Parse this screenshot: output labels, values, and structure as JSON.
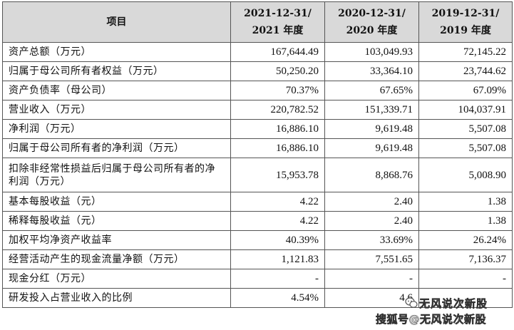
{
  "table": {
    "header": {
      "item": "项目",
      "col1_line1": "2021-12-31/",
      "col1_line2": "2021 年度",
      "col2_line1": "2020-12-31/",
      "col2_line2": "2020 年度",
      "col3_line1": "2019-12-31/",
      "col3_line2": "2019 年度"
    },
    "rows": [
      {
        "label": "资产总额（万元）",
        "v2021": "167,644.49",
        "v2020": "103,049.93",
        "v2019": "72,145.22"
      },
      {
        "label": "归属于母公司所有者权益（万元）",
        "v2021": "50,250.20",
        "v2020": "33,364.10",
        "v2019": "23,744.62"
      },
      {
        "label": "资产负债率（母公司）",
        "v2021": "70.37%",
        "v2020": "67.65%",
        "v2019": "67.09%"
      },
      {
        "label": "营业收入（万元）",
        "v2021": "220,782.52",
        "v2020": "151,339.71",
        "v2019": "104,037.91"
      },
      {
        "label": "净利润（万元）",
        "v2021": "16,886.10",
        "v2020": "9,619.48",
        "v2019": "5,507.08"
      },
      {
        "label": "归属于母公司所有者的净利润（万元）",
        "v2021": "16,886.10",
        "v2020": "9,619.48",
        "v2019": "5,507.08"
      },
      {
        "label": "扣除非经常性损益后归属于母公司所有者的净利润（万元）",
        "v2021": "15,953.78",
        "v2020": "8,868.76",
        "v2019": "5,008.90"
      },
      {
        "label": "基本每股收益（元）",
        "v2021": "4.22",
        "v2020": "2.40",
        "v2019": "1.38"
      },
      {
        "label": "稀释每股收益（元）",
        "v2021": "4.22",
        "v2020": "2.40",
        "v2019": "1.38"
      },
      {
        "label": "加权平均净资产收益率",
        "v2021": "40.39%",
        "v2020": "33.69%",
        "v2019": "26.24%"
      },
      {
        "label": "经营活动产生的现金流量净额（万元）",
        "v2021": "1,121.83",
        "v2020": "7,551.65",
        "v2019": "7,136.37"
      },
      {
        "label": "现金分红（万元）",
        "v2021": "-",
        "v2020": "-",
        "v2019": "-"
      },
      {
        "label": "研发投入占营业收入的比例",
        "v2021": "4.54%",
        "v2020": "4.6",
        "v2019": ""
      }
    ]
  },
  "watermark": {
    "line1": "无风说次新股",
    "line2": "搜狐号@无风说次新股",
    "icon": "wechat-bubble-icon"
  }
}
